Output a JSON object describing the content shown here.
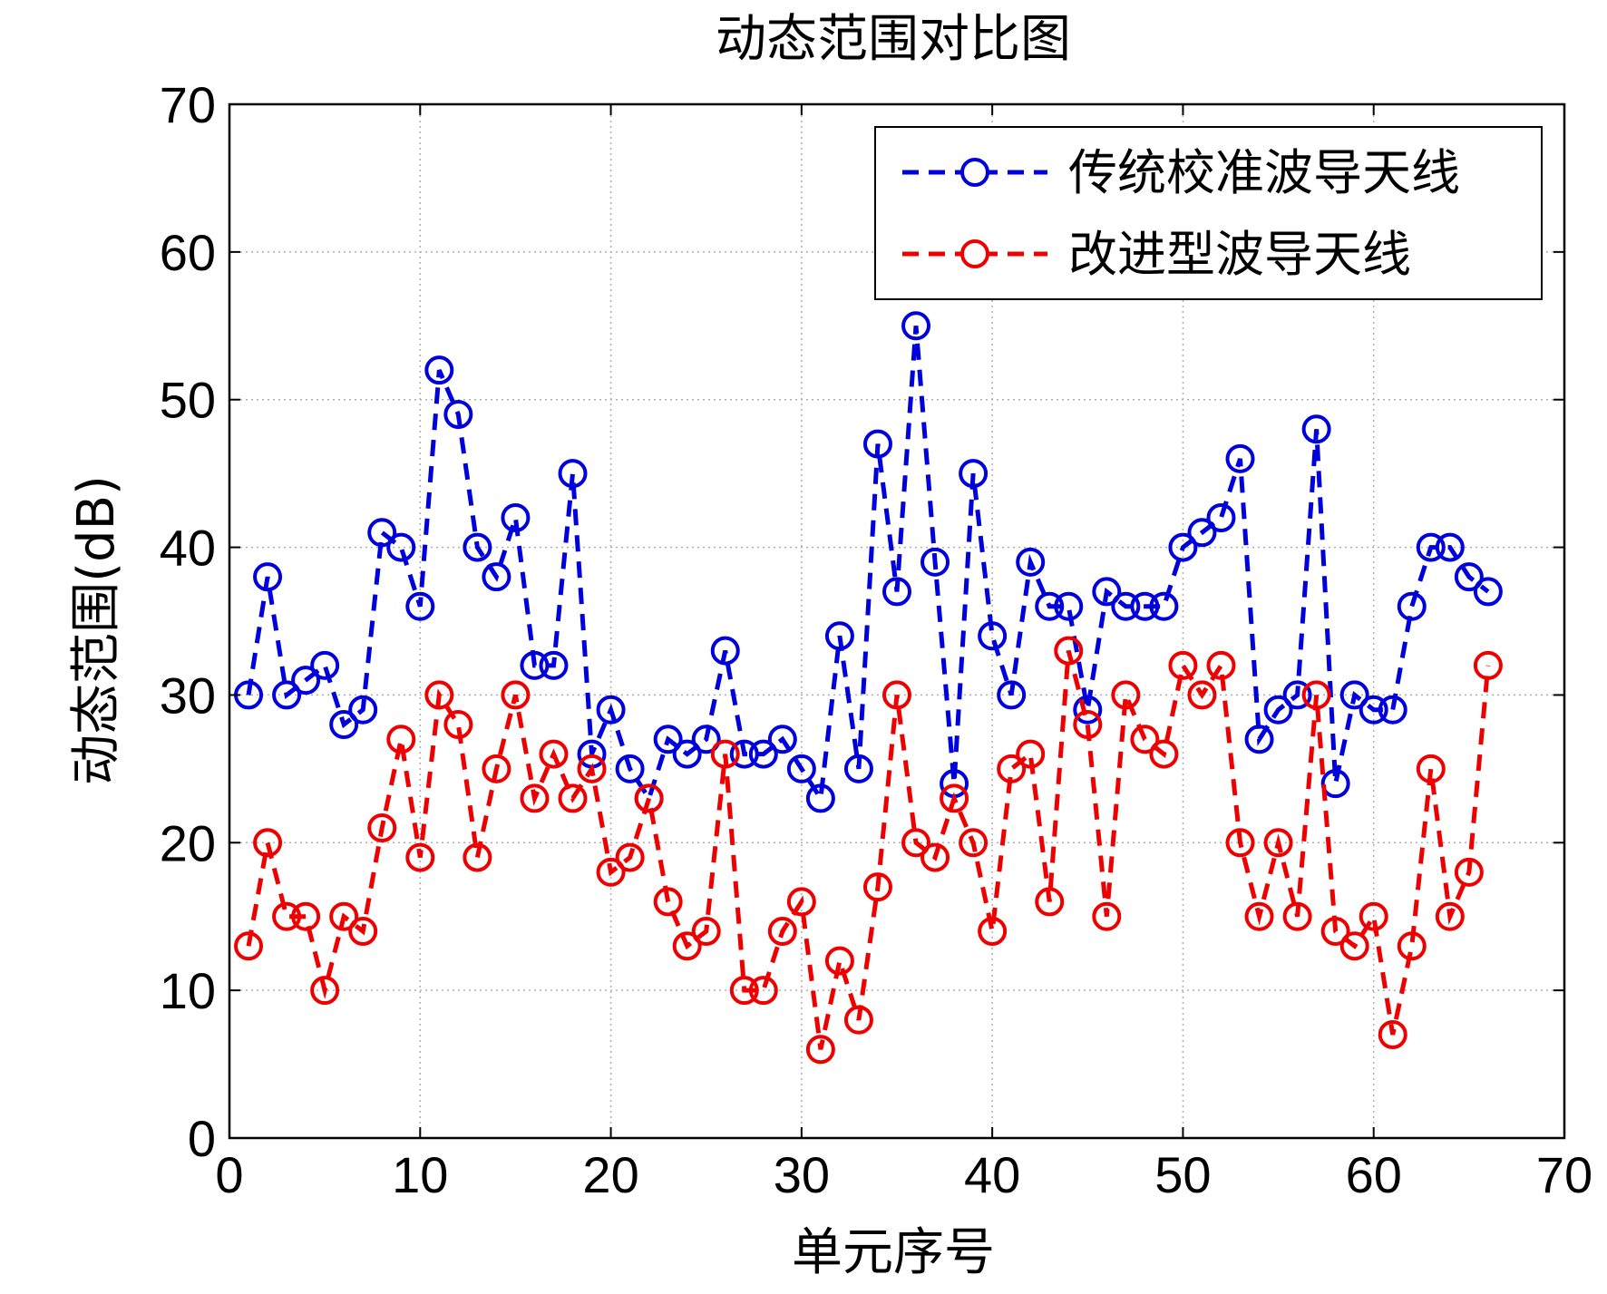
{
  "chart_data": {
    "type": "line",
    "title": "动态范围对比图",
    "xlabel": "单元序号",
    "ylabel": "动态范围(dB)",
    "xlim": [
      0,
      70
    ],
    "ylim": [
      0,
      70
    ],
    "xticks": [
      0,
      10,
      20,
      30,
      40,
      50,
      60,
      70
    ],
    "yticks": [
      0,
      10,
      20,
      30,
      40,
      50,
      60,
      70
    ],
    "grid": true,
    "legend_position": "top-right",
    "x": [
      1,
      2,
      3,
      4,
      5,
      6,
      7,
      8,
      9,
      10,
      11,
      12,
      13,
      14,
      15,
      16,
      17,
      18,
      19,
      20,
      21,
      22,
      23,
      24,
      25,
      26,
      27,
      28,
      29,
      30,
      31,
      32,
      33,
      34,
      35,
      36,
      37,
      38,
      39,
      40,
      41,
      42,
      43,
      44,
      45,
      46,
      47,
      48,
      49,
      50,
      51,
      52,
      53,
      54,
      55,
      56,
      57,
      58,
      59,
      60,
      61,
      62,
      63,
      64,
      65,
      66
    ],
    "series": [
      {
        "name": "传统校准波导天线",
        "color": "#0000dd",
        "marker": "circle",
        "line_style": "dashed",
        "values": [
          30,
          38,
          30,
          31,
          32,
          28,
          29,
          41,
          40,
          36,
          52,
          49,
          40,
          38,
          42,
          32,
          32,
          45,
          26,
          29,
          25,
          23,
          27,
          26,
          27,
          33,
          26,
          26,
          27,
          25,
          23,
          34,
          25,
          47,
          37,
          55,
          39,
          24,
          45,
          34,
          30,
          39,
          36,
          36,
          29,
          37,
          36,
          36,
          36,
          40,
          41,
          42,
          46,
          27,
          29,
          30,
          48,
          24,
          30,
          29,
          29,
          36,
          40,
          40,
          38,
          37
        ]
      },
      {
        "name": "改进型波导天线",
        "color": "#ee0000",
        "marker": "circle",
        "line_style": "dashed",
        "values": [
          13,
          20,
          15,
          15,
          10,
          15,
          14,
          21,
          27,
          19,
          30,
          28,
          19,
          25,
          30,
          23,
          26,
          23,
          25,
          18,
          19,
          23,
          16,
          13,
          14,
          26,
          10,
          10,
          14,
          16,
          6,
          12,
          8,
          17,
          30,
          20,
          19,
          23,
          20,
          14,
          25,
          26,
          16,
          33,
          28,
          15,
          30,
          27,
          26,
          32,
          30,
          32,
          20,
          15,
          20,
          15,
          30,
          14,
          13,
          15,
          7,
          13,
          25,
          15,
          18,
          32
        ]
      }
    ]
  }
}
